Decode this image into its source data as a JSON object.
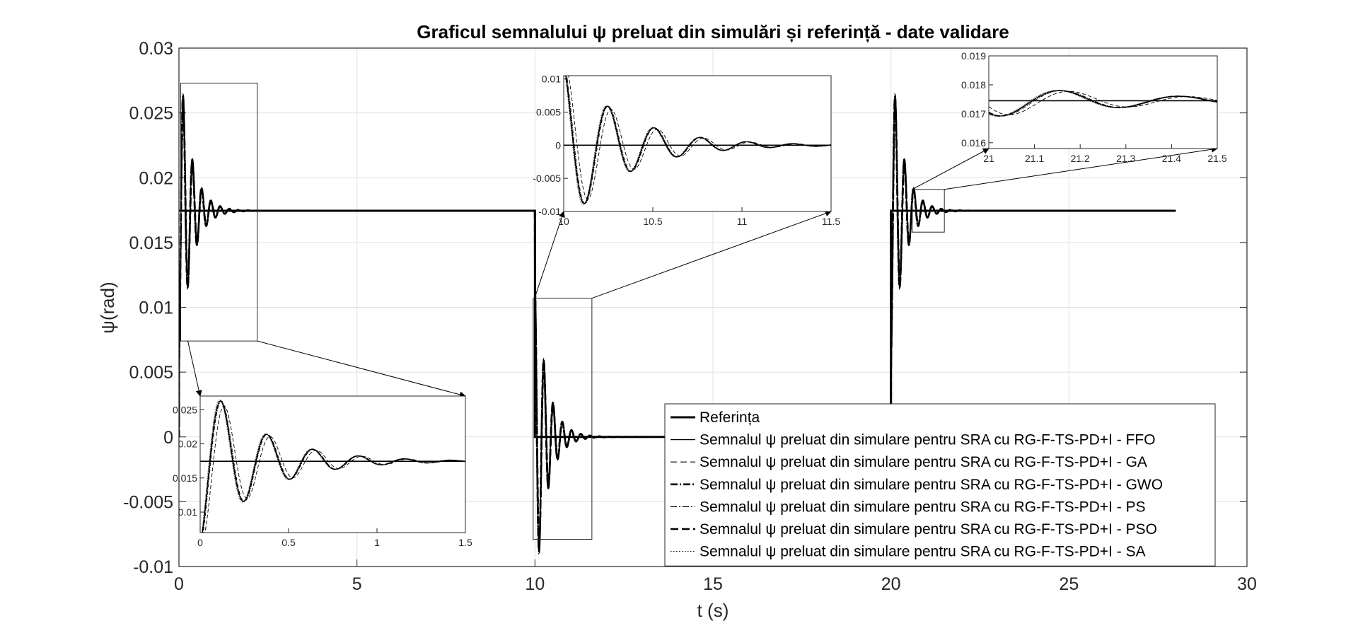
{
  "chart_data": {
    "type": "line",
    "title": "Graficul semnalului ψ preluat din simulări și referință - date validare",
    "xlabel": "t (s)",
    "ylabel": "ψ(rad)",
    "xlim": [
      0,
      30
    ],
    "ylim": [
      -0.01,
      0.03
    ],
    "x_ticks": [
      "0",
      "5",
      "10",
      "15",
      "20",
      "25",
      "30"
    ],
    "y_ticks": [
      "-0.01",
      "-0.005",
      "0",
      "0.005",
      "0.01",
      "0.015",
      "0.02",
      "0.025",
      "0.03"
    ],
    "grid": true,
    "legend_position": "bottom-right",
    "reference": {
      "name": "Referința",
      "segments": [
        {
          "t": [
            0,
            10
          ],
          "value": 0.01745
        },
        {
          "t": [
            10,
            20
          ],
          "value": 0
        },
        {
          "t": [
            20,
            28
          ],
          "value": 0.01745
        }
      ]
    },
    "series": [
      {
        "name": "Semnalul ψ preluat din simulare pentru SRA cu RG-F-TS-PD+I - FFO",
        "style": "solid-thin",
        "peak_first": 0.0262,
        "phase_shift": 0
      },
      {
        "name": "Semnalul ψ preluat din simulare pentru SRA cu RG-F-TS-PD+I - GA",
        "style": "dashed-thin",
        "peak_first": 0.0255,
        "phase_shift": 0.02
      },
      {
        "name": "Semnalul ψ preluat din simulare pentru SRA cu RG-F-TS-PD+I - GWO",
        "style": "dashdot-thick",
        "peak_first": 0.0262,
        "phase_shift": 0
      },
      {
        "name": "Semnalul ψ preluat din simulare pentru SRA cu RG-F-TS-PD+I - PS",
        "style": "dashdot-thin",
        "peak_first": 0.0262,
        "phase_shift": 0.005
      },
      {
        "name": "Semnalul ψ preluat din simulare pentru SRA cu RG-F-TS-PD+I - PSO",
        "style": "dashed-thick",
        "peak_first": 0.0262,
        "phase_shift": 0
      },
      {
        "name": "Semnalul ψ preluat din simulare pentru SRA cu RG-F-TS-PD+I - SA",
        "style": "dotted",
        "peak_first": 0.0264,
        "phase_shift": -0.005
      }
    ],
    "insets": [
      {
        "xlim": [
          0,
          1.5
        ],
        "ylim": [
          0.007,
          0.027
        ],
        "x_ticks": [
          "0",
          "0.5",
          "1",
          "1.5"
        ],
        "y_ticks": [
          "0.01",
          "0.015",
          "0.02",
          "0.025"
        ],
        "ref": 0.01745,
        "step_time": 0,
        "zoom_box": {
          "t": [
            0.05,
            2.2
          ],
          "psi": [
            0.0074,
            0.0273
          ]
        }
      },
      {
        "xlim": [
          10,
          11.5
        ],
        "ylim": [
          -0.01,
          0.0105
        ],
        "x_ticks": [
          "10",
          "10.5",
          "11",
          "11.5"
        ],
        "y_ticks": [
          "-0.01",
          "-0.005",
          "0",
          "0.005",
          "0.01"
        ],
        "ref": 0,
        "step_time": 10,
        "zoom_box": {
          "t": [
            9.95,
            11.6
          ],
          "psi": [
            -0.0079,
            0.0107
          ]
        }
      },
      {
        "xlim": [
          21,
          21.5
        ],
        "ylim": [
          0.0158,
          0.019
        ],
        "x_ticks": [
          "21",
          "21.1",
          "21.2",
          "21.3",
          "21.4",
          "21.5"
        ],
        "y_ticks": [
          "0.016",
          "0.017",
          "0.018",
          "0.019"
        ],
        "ref": 0.01745,
        "step_time": 20,
        "zoom_box": {
          "t": [
            20.6,
            21.5
          ],
          "psi": [
            0.0158,
            0.0191
          ]
        }
      }
    ]
  }
}
